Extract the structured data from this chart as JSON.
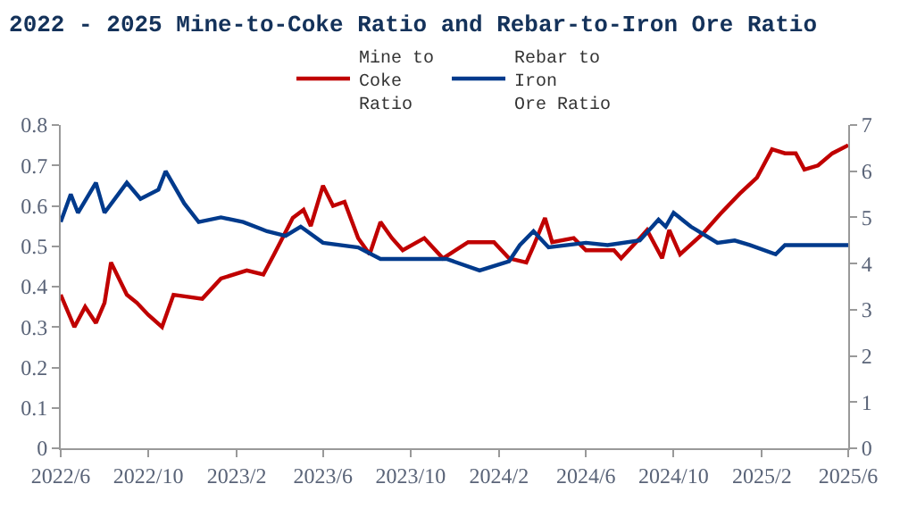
{
  "chart_data": {
    "type": "line",
    "title": "2022 - 2025 Mine-to-Coke Ratio and Rebar-to-Iron Ore Ratio",
    "xlim": [
      "2022-06-01",
      "2025-06-01"
    ],
    "xticks": [
      {
        "value": "2022-06-01",
        "label": "2022/6"
      },
      {
        "value": "2022-10-01",
        "label": "2022/10"
      },
      {
        "value": "2023-02-01",
        "label": "2023/2"
      },
      {
        "value": "2023-06-01",
        "label": "2023/6"
      },
      {
        "value": "2023-10-01",
        "label": "2023/10"
      },
      {
        "value": "2024-02-01",
        "label": "2024/2"
      },
      {
        "value": "2024-06-01",
        "label": "2024/6"
      },
      {
        "value": "2024-10-01",
        "label": "2024/10"
      },
      {
        "value": "2025-02-01",
        "label": "2025/2"
      },
      {
        "value": "2025-06-01",
        "label": "2025/6"
      }
    ],
    "ylim": [
      0,
      0.8
    ],
    "yticks": [
      0,
      0.1,
      0.2,
      0.3,
      0.4,
      0.5,
      0.6,
      0.7,
      0.8
    ],
    "y2lim": [
      0,
      7
    ],
    "y2ticks": [
      0,
      1,
      2,
      3,
      4,
      5,
      6,
      7
    ],
    "legend": "top",
    "marker": "none",
    "line_style": "solid",
    "series": [
      {
        "name": "Mine to\nCoke\nRatio",
        "color": "#c00000",
        "x": [
          "2022-06-01",
          "2022-06-20",
          "2022-07-05",
          "2022-07-20",
          "2022-08-01",
          "2022-08-10",
          "2022-09-01",
          "2022-09-15",
          "2022-10-01",
          "2022-10-20",
          "2022-11-05",
          "2022-12-15",
          "2023-01-10",
          "2023-02-15",
          "2023-03-10",
          "2023-03-25",
          "2023-04-20",
          "2023-05-05",
          "2023-05-15",
          "2023-06-01",
          "2023-06-15",
          "2023-07-01",
          "2023-07-20",
          "2023-08-05",
          "2023-08-20",
          "2023-09-05",
          "2023-09-20",
          "2023-10-20",
          "2023-11-15",
          "2023-12-20",
          "2024-01-25",
          "2024-02-15",
          "2024-03-10",
          "2024-03-20",
          "2024-04-05",
          "2024-04-15",
          "2024-05-15",
          "2024-06-01",
          "2024-07-10",
          "2024-07-20",
          "2024-08-15",
          "2024-08-25",
          "2024-09-15",
          "2024-09-25",
          "2024-10-10",
          "2024-11-10",
          "2024-12-05",
          "2025-01-01",
          "2025-01-25",
          "2025-02-15",
          "2025-03-05",
          "2025-03-20",
          "2025-04-01",
          "2025-04-20",
          "2025-05-10",
          "2025-06-01"
        ],
        "values": [
          0.38,
          0.3,
          0.35,
          0.31,
          0.36,
          0.46,
          0.38,
          0.36,
          0.33,
          0.3,
          0.38,
          0.37,
          0.42,
          0.44,
          0.43,
          0.48,
          0.57,
          0.59,
          0.55,
          0.65,
          0.6,
          0.61,
          0.52,
          0.48,
          0.56,
          0.52,
          0.49,
          0.52,
          0.47,
          0.51,
          0.51,
          0.47,
          0.46,
          0.5,
          0.57,
          0.51,
          0.52,
          0.49,
          0.49,
          0.47,
          0.52,
          0.54,
          0.47,
          0.54,
          0.48,
          0.53,
          0.58,
          0.63,
          0.67,
          0.74,
          0.73,
          0.73,
          0.69,
          0.7,
          0.73,
          0.75
        ]
      },
      {
        "name": "Rebar to\nIron\nOre Ratio",
        "color": "#003a8c",
        "axis": "y2",
        "x": [
          "2022-06-01",
          "2022-06-15",
          "2022-06-25",
          "2022-07-20",
          "2022-08-01",
          "2022-09-01",
          "2022-09-20",
          "2022-10-15",
          "2022-10-25",
          "2022-11-20",
          "2022-12-10",
          "2023-01-10",
          "2023-02-10",
          "2023-03-15",
          "2023-04-10",
          "2023-05-01",
          "2023-06-01",
          "2023-07-20",
          "2023-08-20",
          "2023-10-05",
          "2023-11-20",
          "2024-01-05",
          "2024-02-15",
          "2024-03-01",
          "2024-03-20",
          "2024-04-10",
          "2024-06-01",
          "2024-07-01",
          "2024-08-15",
          "2024-09-10",
          "2024-09-20",
          "2024-10-01",
          "2024-10-25",
          "2024-12-01",
          "2024-12-25",
          "2025-01-15",
          "2025-02-20",
          "2025-03-05",
          "2025-04-20",
          "2025-06-01"
        ],
        "values": [
          4.9,
          5.5,
          5.1,
          5.75,
          5.1,
          5.75,
          5.4,
          5.6,
          6.0,
          5.3,
          4.9,
          5.0,
          4.9,
          4.7,
          4.6,
          4.8,
          4.45,
          4.35,
          4.1,
          4.1,
          4.1,
          3.85,
          4.05,
          4.4,
          4.7,
          4.35,
          4.45,
          4.4,
          4.5,
          4.95,
          4.8,
          5.1,
          4.8,
          4.45,
          4.5,
          4.4,
          4.2,
          4.4,
          4.4,
          4.4
        ]
      }
    ]
  }
}
